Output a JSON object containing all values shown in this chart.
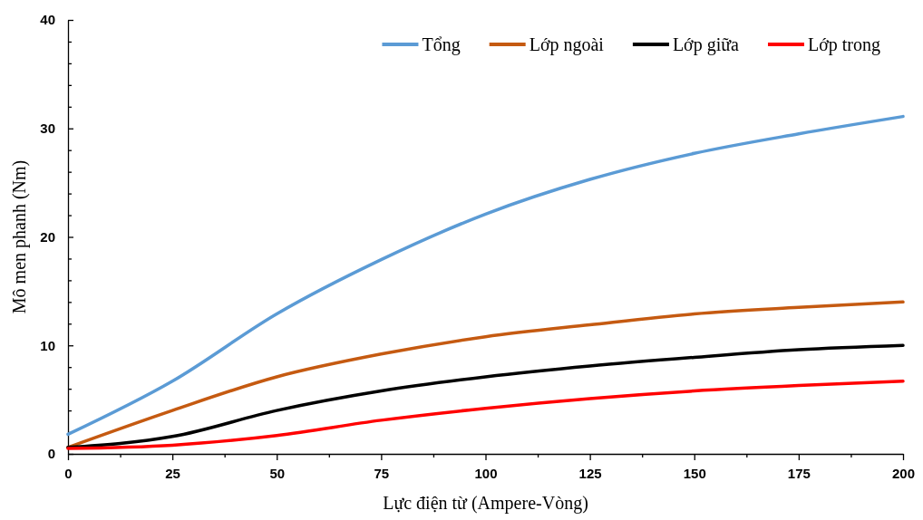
{
  "chart_data": {
    "type": "line",
    "xlabel": "Lực điện từ (Ampere-Vòng)",
    "ylabel": "Mô men phanh (Nm)",
    "x": [
      0,
      25,
      50,
      75,
      100,
      125,
      150,
      175,
      200
    ],
    "series": [
      {
        "name": "Tổng",
        "color": "#5b9bd5",
        "values": [
          1.8,
          6.7,
          12.9,
          17.9,
          22.1,
          25.3,
          27.7,
          29.5,
          31.1
        ]
      },
      {
        "name": "Lớp ngoài",
        "color": "#c55a11",
        "values": [
          0.6,
          4.0,
          7.1,
          9.2,
          10.8,
          11.9,
          12.9,
          13.5,
          14.0
        ]
      },
      {
        "name": "Lớp giữa",
        "color": "#000000",
        "values": [
          0.6,
          1.6,
          4.0,
          5.8,
          7.1,
          8.1,
          8.9,
          9.6,
          10.0
        ]
      },
      {
        "name": "Lớp trong",
        "color": "#ff0000",
        "values": [
          0.5,
          0.8,
          1.7,
          3.1,
          4.2,
          5.1,
          5.8,
          6.3,
          6.7
        ]
      }
    ],
    "xlim": [
      0,
      200
    ],
    "xticks": [
      0,
      {
        "value": 12.5,
        "label": null
      },
      25,
      {
        "value": 37.5,
        "label": null
      },
      50,
      {
        "value": 62.5,
        "label": null
      },
      75,
      {
        "value": 87.5,
        "label": null
      },
      100,
      {
        "value": 112.5,
        "label": null
      },
      125,
      {
        "value": 137.5,
        "label": null
      },
      150,
      {
        "value": 162.5,
        "label": null
      },
      175,
      {
        "value": 187.5,
        "label": null
      },
      200
    ],
    "ylim": [
      0,
      40
    ],
    "yticks": [
      0,
      {
        "value": 2,
        "label": null
      },
      {
        "value": 4,
        "label": null
      },
      {
        "value": 6,
        "label": null
      },
      {
        "value": 8,
        "label": null
      },
      10,
      {
        "value": 12,
        "label": null
      },
      {
        "value": 14,
        "label": null
      },
      {
        "value": 16,
        "label": null
      },
      {
        "value": 18,
        "label": null
      },
      20,
      {
        "value": 22,
        "label": null
      },
      {
        "value": 24,
        "label": null
      },
      {
        "value": 26,
        "label": null
      },
      {
        "value": 28,
        "label": null
      },
      30,
      {
        "value": 32,
        "label": null
      },
      {
        "value": 34,
        "label": null
      },
      {
        "value": 36,
        "label": null
      },
      {
        "value": 38,
        "label": null
      },
      40
    ],
    "grid": false,
    "legend": "top right",
    "marker": "none",
    "line_style": "solid"
  }
}
